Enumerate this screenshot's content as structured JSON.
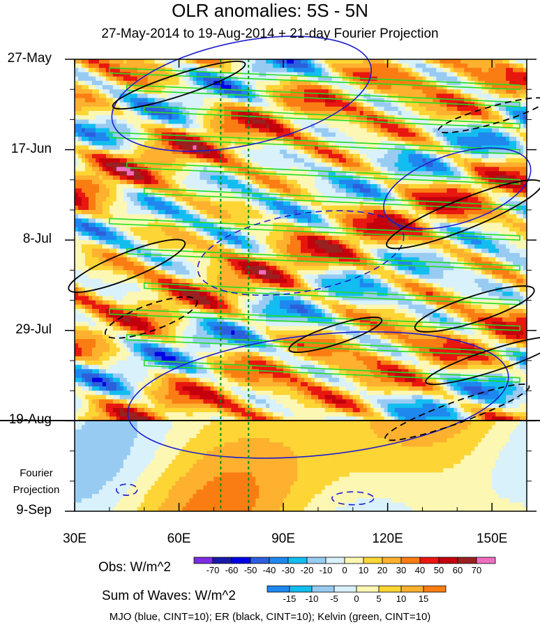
{
  "chart_data": {
    "type": "heatmap",
    "title": "OLR anomalies: 5S - 5N",
    "subtitle": "27-May-2014 to 19-Aug-2014 + 21-day Fourier Projection",
    "x_ticks": [
      "30E",
      "60E",
      "90E",
      "120E",
      "150E"
    ],
    "x_tick_values": [
      30,
      60,
      90,
      120,
      150
    ],
    "xlim": [
      30,
      160
    ],
    "y_ticks": [
      "27-May",
      "17-Jun",
      "8-Jul",
      "29-Jul",
      "19-Aug",
      "9-Sep"
    ],
    "y_tick_days": [
      0,
      21,
      42,
      63,
      84,
      105
    ],
    "ylim_days": [
      0,
      105
    ],
    "observation_end": "19-Aug",
    "projection_label_line1": "Fourier",
    "projection_label_line2": "Projection",
    "reference_longitudes": [
      72,
      80
    ],
    "obs_legend": {
      "title": "Obs: W/m^2",
      "levels": [
        "-70",
        "-60",
        "-50",
        "-40",
        "-30",
        "-20",
        "-10",
        "0",
        "10",
        "20",
        "30",
        "40",
        "50",
        "60",
        "70"
      ],
      "colors": [
        "#7a2ee0",
        "#1a1aa8",
        "#0000e6",
        "#2d5fdc",
        "#1e88ef",
        "#12bdf0",
        "#98cbf2",
        "#d9f1fb",
        "#fdf7b4",
        "#fdd535",
        "#fdb12e",
        "#fa7d13",
        "#e81710",
        "#c3000c",
        "#992121",
        "#f06ec0"
      ]
    },
    "waves_legend": {
      "title": "Sum of Waves: W/m^2",
      "levels": [
        "-15",
        "-10",
        "-5",
        "0",
        "5",
        "10",
        "15"
      ],
      "colors": [
        "#1e88ef",
        "#12bdf0",
        "#98cbf2",
        "#d9f1fb",
        "#fdf7b4",
        "#fdd535",
        "#fdb12e",
        "#fa7d13"
      ]
    },
    "wave_contours": [
      {
        "name": "MJO",
        "color": "#1c1ccc"
      },
      {
        "name": "ER",
        "color": "#000000"
      },
      {
        "name": "Kelvin",
        "color": "#22dd22"
      }
    ],
    "caption": "MJO (blue, CINT=10); ER (black, CINT=10); Kelvin (green, CINT=10)"
  }
}
